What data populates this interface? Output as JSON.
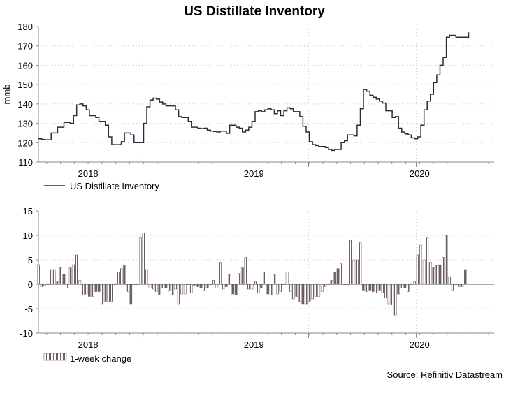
{
  "title": "US Distillate Inventory",
  "source": "Source: Refinitiv Datastream",
  "colors": {
    "line": "#2b2b3f",
    "bar": "#b09da6",
    "bar_edge": "#6d5d66",
    "grid": "#c8d6a4",
    "axis": "#8a8a8a"
  },
  "chart_data": [
    {
      "type": "line",
      "title": "US Distillate Inventory",
      "ylabel": "mmb",
      "xlabel": "",
      "ylim": [
        110,
        180
      ],
      "yticks": [
        "110",
        "120",
        "130",
        "140",
        "150",
        "160",
        "170",
        "180"
      ],
      "xlim": [
        2017.7,
        2020.45
      ],
      "xticks": [
        {
          "label": "2018",
          "x": 2018.0
        },
        {
          "label": "2019",
          "x": 2019.0
        },
        {
          "label": "2020",
          "x": 2020.0
        }
      ],
      "year_boundaries": [
        2018.33,
        2019.33,
        2019.98
      ],
      "legend": "US Distillate Inventory",
      "series": [
        {
          "name": "US Distillate Inventory",
          "x_start": 2017.7,
          "x_step": 0.01923,
          "values": [
            122,
            121.7,
            121.5,
            121.5,
            125,
            125,
            128,
            128,
            130.5,
            130.5,
            130,
            134,
            139.5,
            140,
            139,
            137,
            134,
            134,
            133,
            131,
            131,
            129,
            123,
            119,
            119,
            119,
            120.5,
            125,
            125,
            124,
            120,
            120,
            120,
            130,
            138.5,
            142,
            143,
            142.5,
            141,
            140,
            139,
            139,
            139,
            137,
            133.5,
            133,
            133,
            131,
            128,
            128,
            127.5,
            127.3,
            127.5,
            126.5,
            126,
            125.8,
            125.5,
            126,
            126,
            124.8,
            129,
            129,
            128,
            127.5,
            125.5,
            126.5,
            128,
            131,
            136,
            136.5,
            136,
            137,
            137.5,
            137,
            135,
            136.5,
            134,
            136.5,
            138,
            137.5,
            136,
            136,
            133.5,
            128.5,
            125.5,
            120.5,
            119,
            118.5,
            118,
            118,
            117.5,
            116.5,
            116,
            116.5,
            116.5,
            120,
            121,
            124,
            124,
            123.5,
            129,
            137.5,
            147.5,
            146.5,
            144.5,
            143.5,
            142.5,
            141.5,
            140.5,
            136.5,
            136.5,
            133,
            133.5,
            127.5,
            125.5,
            124.5,
            124,
            122.5,
            122,
            123,
            129,
            137,
            141.5,
            145,
            151,
            155,
            160,
            164,
            174.5,
            175.5,
            175.5,
            174.5,
            174.5,
            174.5,
            174.5,
            177
          ]
        }
      ]
    },
    {
      "type": "bar",
      "title": "",
      "ylabel": "",
      "xlabel": "",
      "ylim": [
        -10,
        15
      ],
      "yticks": [
        "-10",
        "-5",
        "0",
        "5",
        "10",
        "15"
      ],
      "xlim": [
        2017.7,
        2020.45
      ],
      "xticks": [
        {
          "label": "2018",
          "x": 2018.0
        },
        {
          "label": "2019",
          "x": 2019.0
        },
        {
          "label": "2020",
          "x": 2020.0
        }
      ],
      "year_boundaries": [
        2018.33,
        2019.33,
        2019.98
      ],
      "legend": "1-week change",
      "series": [
        {
          "name": "1-week change",
          "x_start": 2017.7,
          "x_step": 0.01923,
          "values": [
            4,
            -0.5,
            -0.3,
            0,
            3,
            3,
            0.5,
            3.5,
            2,
            -0.8,
            3.5,
            4,
            6,
            0.8,
            -2.2,
            -2,
            -2.5,
            -2.5,
            -1.5,
            -1.5,
            -4,
            -3.5,
            -3.5,
            -3.5,
            0,
            2.5,
            3.2,
            3.8,
            -1.5,
            -4,
            0,
            0,
            9.5,
            10.5,
            3,
            -0.8,
            -1,
            -1.5,
            -2.2,
            -0.8,
            -0.8,
            -1.2,
            -2.2,
            -1,
            -4,
            -2,
            -2,
            0,
            -1.8,
            -0.3,
            -0.5,
            -0.8,
            -1.2,
            -0.7,
            0,
            0.8,
            -0.8,
            4.5,
            -1,
            -0.5,
            2,
            -2,
            -2.2,
            2.2,
            3.5,
            5.5,
            -1,
            -1,
            0.5,
            -1.8,
            -0.8,
            2.5,
            -2,
            -2.2,
            2,
            -2,
            -1.5,
            0,
            2.5,
            -1.5,
            -3,
            -2.5,
            -3.5,
            -4,
            -4,
            -3.5,
            -3,
            -2.5,
            -2.5,
            -1.5,
            -0.5,
            0,
            0.8,
            2.5,
            3.2,
            4.2,
            0,
            0,
            9,
            5,
            5,
            8.5,
            -1.2,
            -1.5,
            -1.2,
            -1.5,
            -1.8,
            -1.2,
            -1.8,
            -2.8,
            -4,
            -4.2,
            -6.3,
            -2,
            -0.8,
            -0.8,
            -1.5,
            0,
            0.5,
            6,
            8,
            5,
            9.5,
            4.5,
            3.5,
            3.8,
            4,
            5.5,
            10,
            1.5,
            -1.2,
            0,
            -0.5,
            -0.5,
            3
          ]
        }
      ]
    }
  ]
}
